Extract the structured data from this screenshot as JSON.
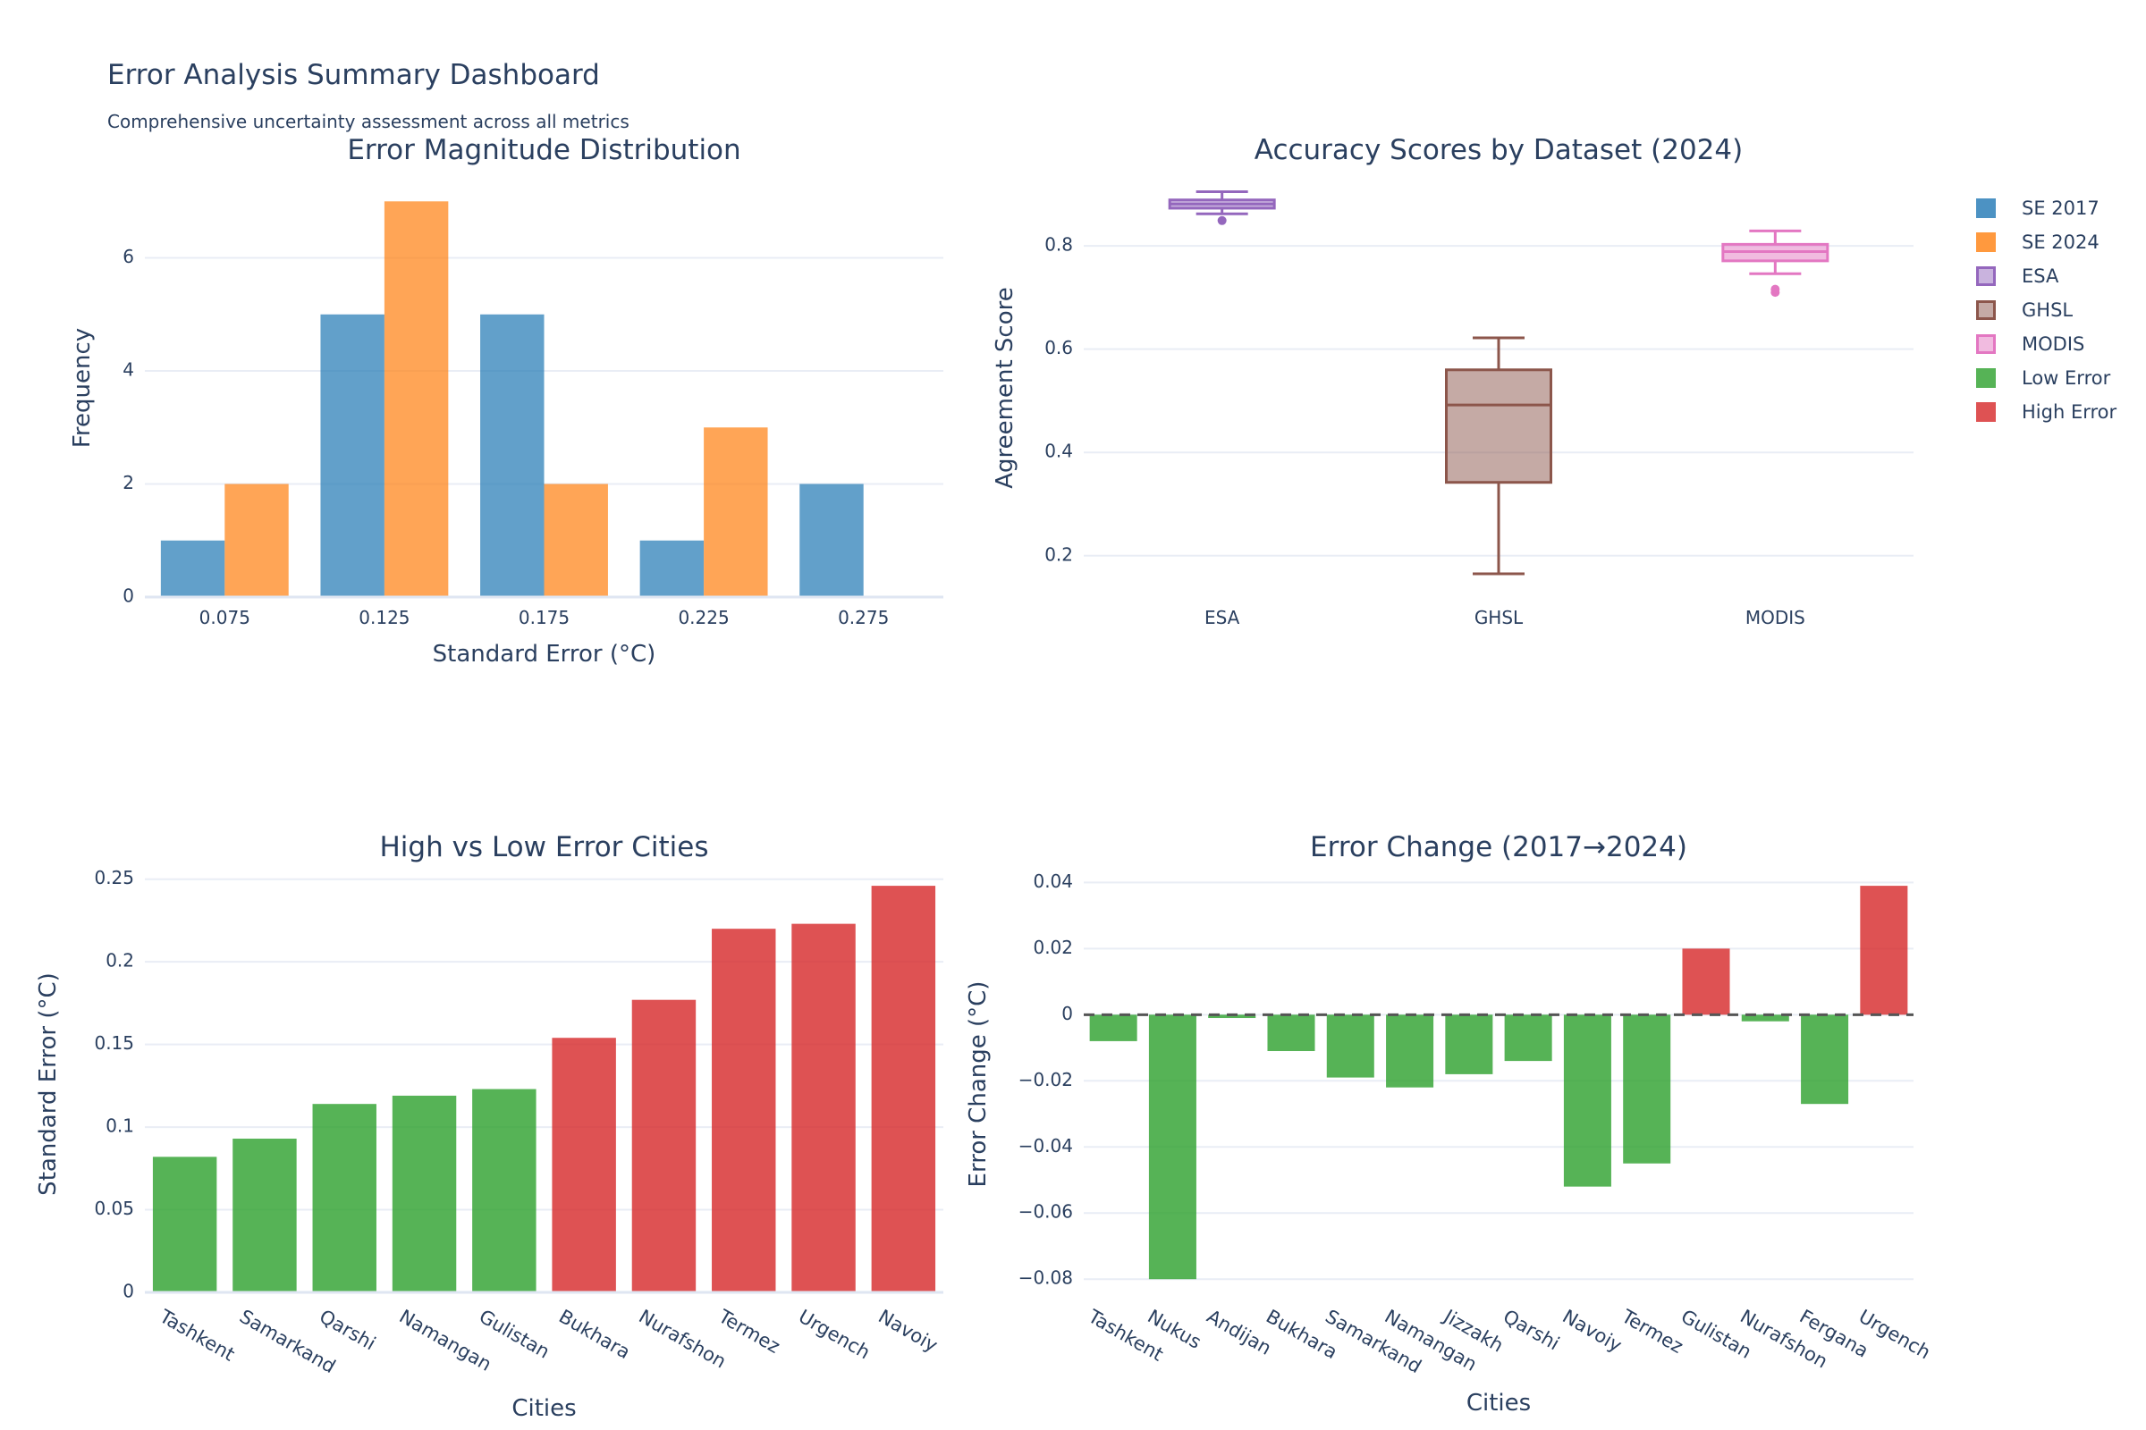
{
  "dashboard": {
    "title": "Error Analysis Summary Dashboard",
    "subtitle": "Comprehensive uncertainty assessment across all metrics"
  },
  "colors": {
    "se2017": "#1f77b4",
    "se2024": "#ff7f0e",
    "esa": "#9467bd",
    "ghsl": "#8c564b",
    "modis": "#e377c2",
    "low": "#2ca02c",
    "high": "#d62728",
    "grid": "#e9edf5",
    "text": "#2a3f5f"
  },
  "legend": [
    {
      "label": "SE 2017",
      "color": "#1f77b4",
      "kind": "bar"
    },
    {
      "label": "SE 2024",
      "color": "#ff7f0e",
      "kind": "bar"
    },
    {
      "label": "ESA",
      "color": "#9467bd",
      "kind": "box"
    },
    {
      "label": "GHSL",
      "color": "#8c564b",
      "kind": "box"
    },
    {
      "label": "MODIS",
      "color": "#e377c2",
      "kind": "box"
    },
    {
      "label": "Low Error",
      "color": "#2ca02c",
      "kind": "bar"
    },
    {
      "label": "High Error",
      "color": "#d62728",
      "kind": "bar"
    }
  ],
  "chart_data": [
    {
      "type": "bar",
      "title": "Error Magnitude Distribution",
      "xlabel": "Standard Error (°C)",
      "ylabel": "Frequency",
      "categories": [
        "0.075",
        "0.125",
        "0.175",
        "0.225",
        "0.275"
      ],
      "series": [
        {
          "name": "SE 2017",
          "values": [
            1,
            5,
            5,
            1,
            2
          ]
        },
        {
          "name": "SE 2024",
          "values": [
            2,
            7,
            2,
            3,
            0
          ]
        }
      ],
      "ylim": [
        0,
        7.4
      ],
      "yticks": [
        0,
        2,
        4,
        6
      ],
      "grid": true
    },
    {
      "type": "box",
      "title": "Accuracy Scores by Dataset (2024)",
      "xlabel": "",
      "ylabel": "Agreement Score",
      "categories": [
        "ESA",
        "GHSL",
        "MODIS"
      ],
      "boxes": [
        {
          "name": "ESA",
          "min": 0.862,
          "q1": 0.873,
          "median": 0.881,
          "q3": 0.889,
          "max": 0.905,
          "outliers": [
            0.849
          ]
        },
        {
          "name": "GHSL",
          "min": 0.165,
          "q1": 0.342,
          "median": 0.492,
          "q3": 0.56,
          "max": 0.622,
          "outliers": []
        },
        {
          "name": "MODIS",
          "min": 0.746,
          "q1": 0.771,
          "median": 0.789,
          "q3": 0.803,
          "max": 0.829,
          "outliers": [
            0.716,
            0.71
          ]
        }
      ],
      "ylim": [
        0.12,
        0.93
      ],
      "yticks": [
        "0.2",
        "0.4",
        "0.6",
        "0.8"
      ],
      "grid": true
    },
    {
      "type": "bar",
      "title": "High vs Low Error Cities",
      "xlabel": "Cities",
      "ylabel": "Standard Error (°C)",
      "categories": [
        "Tashkent",
        "Samarkand",
        "Qarshi",
        "Namangan",
        "Gulistan",
        "Bukhara",
        "Nurafshon",
        "Termez",
        "Urgench",
        "Navoiy"
      ],
      "values": [
        0.082,
        0.093,
        0.114,
        0.119,
        0.123,
        0.154,
        0.177,
        0.22,
        0.223,
        0.246
      ],
      "groups": [
        "Low Error",
        "Low Error",
        "Low Error",
        "Low Error",
        "Low Error",
        "High Error",
        "High Error",
        "High Error",
        "High Error",
        "High Error"
      ],
      "ylim": [
        0,
        0.252
      ],
      "yticks": [
        "0",
        "0.05",
        "0.1",
        "0.15",
        "0.2",
        "0.25"
      ],
      "grid": true
    },
    {
      "type": "bar",
      "title": "Error Change (2017→2024)",
      "xlabel": "Cities",
      "ylabel": "Error Change (°C)",
      "categories": [
        "Tashkent",
        "Nukus",
        "Andijan",
        "Bukhara",
        "Samarkand",
        "Namangan",
        "Jizzakh",
        "Qarshi",
        "Navoiy",
        "Termez",
        "Gulistan",
        "Nurafshon",
        "Fergana",
        "Urgench"
      ],
      "values": [
        -0.008,
        -0.08,
        -0.001,
        -0.011,
        -0.019,
        -0.022,
        -0.018,
        -0.014,
        -0.052,
        -0.045,
        0.02,
        -0.002,
        -0.027,
        0.039
      ],
      "reference_line": 0,
      "ylim": [
        -0.084,
        0.042
      ],
      "yticks": [
        "−0.08",
        "−0.06",
        "−0.04",
        "−0.02",
        "0",
        "0.02",
        "0.04"
      ],
      "grid": true
    }
  ]
}
